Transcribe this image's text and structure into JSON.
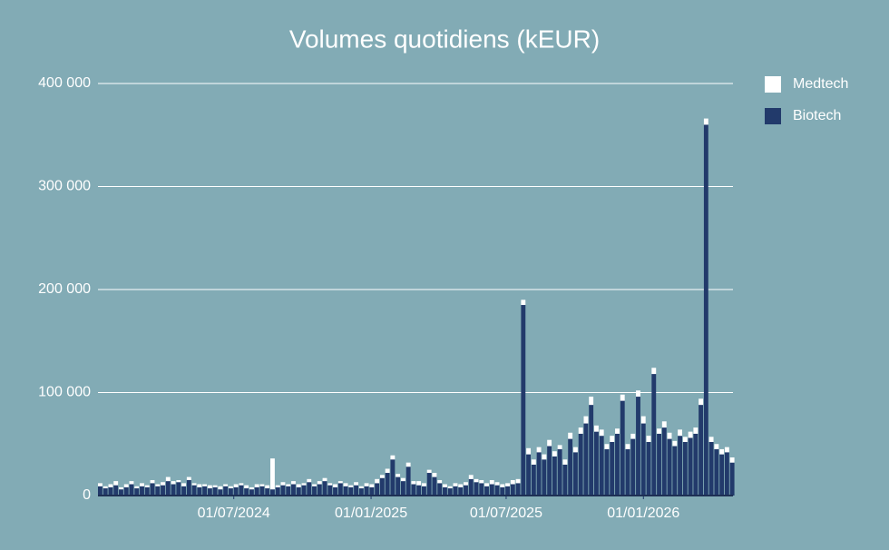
{
  "chart_data": {
    "type": "stacked_bar",
    "title": "Volumes quotidiens (kEUR)",
    "x": [
      "2024-01-01",
      "2024-01-08",
      "2024-01-15",
      "2024-01-22",
      "2024-01-29",
      "2024-02-05",
      "2024-02-12",
      "2024-02-19",
      "2024-02-26",
      "2024-03-04",
      "2024-03-11",
      "2024-03-18",
      "2024-03-25",
      "2024-04-01",
      "2024-04-08",
      "2024-04-15",
      "2024-04-22",
      "2024-04-29",
      "2024-05-06",
      "2024-05-13",
      "2024-05-20",
      "2024-05-27",
      "2024-06-03",
      "2024-06-10",
      "2024-06-17",
      "2024-06-24",
      "2024-07-01",
      "2024-07-08",
      "2024-07-15",
      "2024-07-22",
      "2024-07-29",
      "2024-08-05",
      "2024-08-12",
      "2024-08-19",
      "2024-08-26",
      "2024-09-02",
      "2024-09-09",
      "2024-09-16",
      "2024-09-23",
      "2024-09-30",
      "2024-10-07",
      "2024-10-14",
      "2024-10-21",
      "2024-10-28",
      "2024-11-04",
      "2024-11-11",
      "2024-11-18",
      "2024-11-25",
      "2024-12-02",
      "2024-12-09",
      "2024-12-16",
      "2024-12-23",
      "2024-12-30",
      "2025-01-06",
      "2025-01-13",
      "2025-01-20",
      "2025-01-27",
      "2025-02-03",
      "2025-02-10",
      "2025-02-17",
      "2025-02-24",
      "2025-03-03",
      "2025-03-10",
      "2025-03-17",
      "2025-03-24",
      "2025-03-31",
      "2025-04-07",
      "2025-04-14",
      "2025-04-21",
      "2025-04-28",
      "2025-05-05",
      "2025-05-12",
      "2025-05-19",
      "2025-05-26",
      "2025-06-02",
      "2025-06-09",
      "2025-06-16",
      "2025-06-23",
      "2025-06-30",
      "2025-07-07",
      "2025-07-14",
      "2025-07-21",
      "2025-07-28",
      "2025-08-04",
      "2025-08-11",
      "2025-08-18",
      "2025-08-25",
      "2025-09-01",
      "2025-09-08",
      "2025-09-15",
      "2025-09-22",
      "2025-09-29",
      "2025-10-06",
      "2025-10-13",
      "2025-10-20",
      "2025-10-27",
      "2025-11-03",
      "2025-11-10",
      "2025-11-17",
      "2025-11-24",
      "2025-12-01",
      "2025-12-08",
      "2025-12-15",
      "2025-12-22",
      "2025-12-29",
      "2026-01-05",
      "2026-01-12",
      "2026-01-19",
      "2026-01-26",
      "2026-02-02",
      "2026-02-09",
      "2026-02-16",
      "2026-02-23",
      "2026-03-02",
      "2026-03-09",
      "2026-03-16",
      "2026-03-23",
      "2026-03-30",
      "2026-04-06",
      "2026-04-13",
      "2026-04-20",
      "2026-04-27"
    ],
    "series": [
      {
        "name": "Biotech",
        "color": "#223a6b",
        "values": [
          9000,
          7000,
          8000,
          10000,
          6000,
          8000,
          11000,
          7000,
          9000,
          8000,
          12000,
          9000,
          10000,
          14000,
          11000,
          13000,
          9000,
          15000,
          10000,
          8000,
          9000,
          7000,
          8000,
          6000,
          9000,
          7000,
          8000,
          10000,
          7000,
          6000,
          8000,
          9000,
          7000,
          6000,
          8000,
          10000,
          9000,
          11000,
          8000,
          10000,
          13000,
          9000,
          11000,
          14000,
          10000,
          8000,
          12000,
          9000,
          8000,
          10000,
          7000,
          9000,
          8000,
          12000,
          17000,
          22000,
          35000,
          18000,
          14000,
          28000,
          11000,
          10000,
          9000,
          22000,
          18000,
          12000,
          8000,
          7000,
          9000,
          8000,
          10000,
          16000,
          13000,
          12000,
          9000,
          11000,
          10000,
          8000,
          9000,
          11000,
          12000,
          185000,
          40000,
          30000,
          42000,
          35000,
          48000,
          38000,
          45000,
          30000,
          55000,
          42000,
          60000,
          70000,
          88000,
          62000,
          58000,
          45000,
          52000,
          60000,
          92000,
          45000,
          55000,
          96000,
          70000,
          52000,
          118000,
          60000,
          66000,
          55000,
          48000,
          58000,
          52000,
          56000,
          60000,
          88000,
          360000,
          52000,
          45000,
          40000,
          42000,
          32000
        ]
      },
      {
        "name": "Medtech",
        "color": "#ffffff",
        "values": [
          3000,
          2000,
          3000,
          4000,
          2000,
          3000,
          3000,
          2000,
          3000,
          2000,
          3000,
          2000,
          3000,
          4000,
          3000,
          2000,
          3000,
          3000,
          2000,
          3000,
          2000,
          3000,
          2000,
          3000,
          2000,
          2000,
          3000,
          2000,
          3000,
          2000,
          3000,
          2000,
          3000,
          30000,
          2000,
          3000,
          2000,
          3000,
          3000,
          2000,
          3000,
          2000,
          3000,
          3000,
          2000,
          3000,
          2000,
          3000,
          2000,
          3000,
          2000,
          3000,
          3000,
          4000,
          3000,
          4000,
          4000,
          3000,
          3000,
          4000,
          3000,
          4000,
          3000,
          3000,
          4000,
          3000,
          3000,
          2000,
          3000,
          3000,
          3000,
          4000,
          3000,
          3000,
          3000,
          4000,
          3000,
          3000,
          3000,
          4000,
          4000,
          5000,
          6000,
          5000,
          5000,
          5000,
          6000,
          5000,
          4000,
          5000,
          6000,
          5000,
          6000,
          7000,
          8000,
          6000,
          6000,
          5000,
          6000,
          5000,
          6000,
          5000,
          5000,
          6000,
          7000,
          6000,
          6000,
          5000,
          6000,
          6000,
          5000,
          6000,
          5000,
          6000,
          6000,
          6000,
          6000,
          5000,
          5000,
          5000,
          5000,
          5000
        ]
      }
    ],
    "xlim": [
      "2024-01-01",
      "2026-05-01"
    ],
    "xticks": [
      {
        "value": "2024-07-01",
        "label": "01/07/2024"
      },
      {
        "value": "2025-01-01",
        "label": "01/01/2025"
      },
      {
        "value": "2025-07-01",
        "label": "01/07/2025"
      },
      {
        "value": "2026-01-01",
        "label": "01/01/2026"
      }
    ],
    "ylim": [
      0,
      400000
    ],
    "yticks": [
      0,
      {
        "value": 100000,
        "label": "100 000"
      },
      {
        "value": 200000,
        "label": "200 000"
      },
      {
        "value": 300000,
        "label": "300 000"
      },
      {
        "value": 400000,
        "label": "400 000"
      }
    ],
    "grid": true,
    "legend": "top-right"
  }
}
